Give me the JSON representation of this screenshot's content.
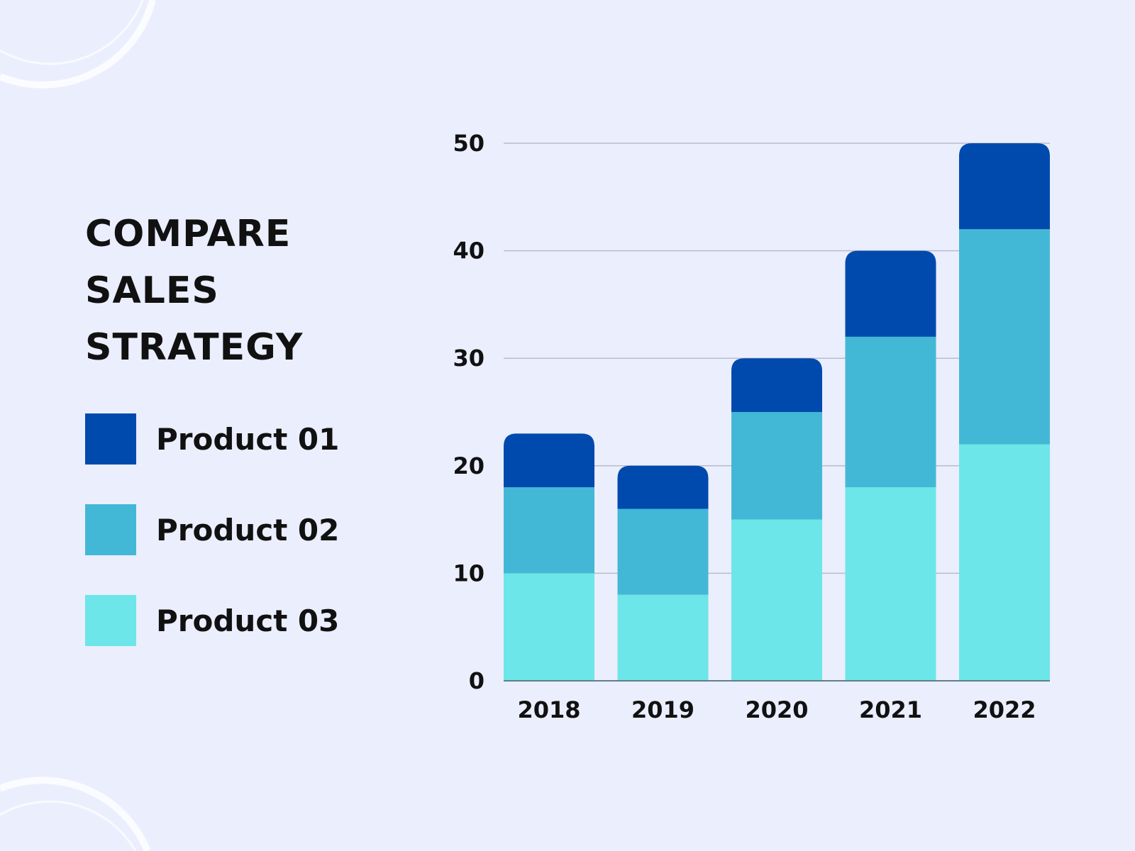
{
  "title_lines": [
    "COMPARE",
    "SALES",
    "STRATEGY"
  ],
  "chart_data": {
    "type": "bar",
    "stacked": true,
    "categories": [
      "2018",
      "2019",
      "2020",
      "2021",
      "2022"
    ],
    "series": [
      {
        "name": "Product 03",
        "color": "#6ce6e8",
        "values": [
          10,
          8,
          15,
          18,
          22
        ]
      },
      {
        "name": "Product 02",
        "color": "#43b8d6",
        "values": [
          8,
          8,
          10,
          14,
          20
        ]
      },
      {
        "name": "Product 01",
        "color": "#004aad",
        "values": [
          5,
          4,
          5,
          8,
          8
        ]
      }
    ],
    "ylim": [
      0,
      50
    ],
    "yticks": [
      0,
      10,
      20,
      30,
      40,
      50
    ],
    "grid": true,
    "legend_placement": "left"
  },
  "legend": [
    {
      "label": "Product 01",
      "color": "#004aad"
    },
    {
      "label": "Product 02",
      "color": "#43b8d6"
    },
    {
      "label": "Product 03",
      "color": "#6ce6e8"
    }
  ]
}
